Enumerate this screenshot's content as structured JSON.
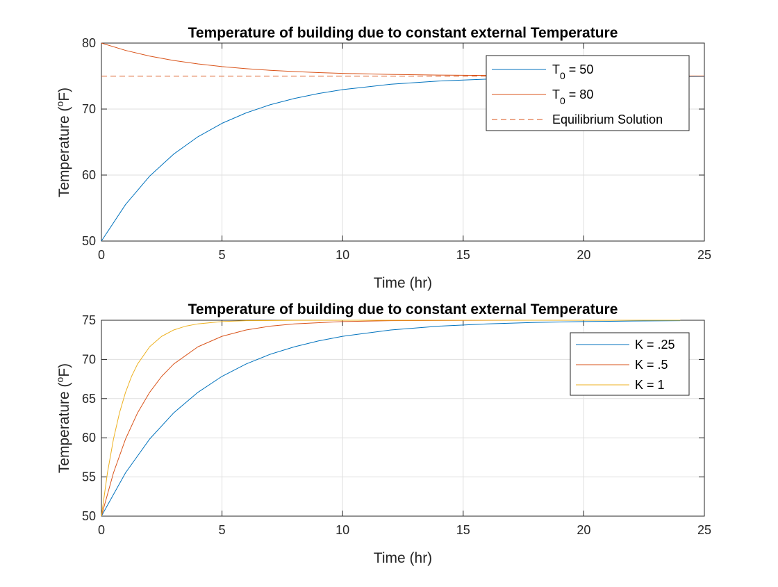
{
  "chart_data": [
    {
      "type": "line",
      "title": "Temperature of building due to constant external Temperature",
      "xlabel": "Time (hr)",
      "ylabel": "Temperature (",
      "ylabel_sup": "o",
      "ylabel_tail": "F)",
      "xlim": [
        0,
        25
      ],
      "ylim": [
        50,
        80
      ],
      "xticks": [
        0,
        5,
        10,
        15,
        20,
        25
      ],
      "yticks": [
        50,
        60,
        70,
        80
      ],
      "grid": true,
      "legend_position": "top-right",
      "series": [
        {
          "name": "T0 = 50",
          "label_main": "T",
          "label_sub": "0",
          "label_tail": " = 50",
          "color": "#0072BD",
          "style": "solid",
          "x": [
            0,
            1,
            2,
            3,
            4,
            5,
            6,
            7,
            8,
            9,
            10,
            12,
            14,
            16,
            18,
            20,
            22,
            24,
            25
          ],
          "y": [
            50,
            55.53,
            59.84,
            63.19,
            65.8,
            67.84,
            69.42,
            70.66,
            71.61,
            72.36,
            72.95,
            73.76,
            74.25,
            74.54,
            74.72,
            74.83,
            74.9,
            74.94,
            74.95
          ]
        },
        {
          "name": "T0 = 80",
          "label_main": "T",
          "label_sub": "0",
          "label_tail": " = 80",
          "color": "#D95319",
          "style": "solid",
          "x": [
            0,
            1,
            2,
            3,
            4,
            5,
            6,
            7,
            8,
            9,
            10,
            12,
            14,
            16,
            18,
            20,
            22,
            24,
            25
          ],
          "y": [
            80,
            78.89,
            78.03,
            77.36,
            76.84,
            76.43,
            76.12,
            75.87,
            75.68,
            75.53,
            75.41,
            75.25,
            75.15,
            75.09,
            75.06,
            75.03,
            75.02,
            75.01,
            75.01
          ]
        },
        {
          "name": "Equilibrium Solution",
          "label_main": "Equilibrium Solution",
          "label_sub": "",
          "label_tail": "",
          "color": "#D95319",
          "style": "dashed",
          "x": [
            0,
            25
          ],
          "y": [
            75,
            75
          ]
        }
      ]
    },
    {
      "type": "line",
      "title": "Temperature of building due to constant external Temperature",
      "xlabel": "Time (hr)",
      "ylabel": "Temperature (",
      "ylabel_sup": "o",
      "ylabel_tail": "F)",
      "xlim": [
        0,
        25
      ],
      "ylim": [
        50,
        75
      ],
      "xticks": [
        0,
        5,
        10,
        15,
        20,
        25
      ],
      "yticks": [
        50,
        55,
        60,
        65,
        70,
        75
      ],
      "grid": true,
      "legend_position": "top-right",
      "series": [
        {
          "name": "K = .25",
          "label_main": "K = .25",
          "label_sub": "",
          "label_tail": "",
          "color": "#0072BD",
          "style": "solid",
          "x": [
            0,
            1,
            2,
            3,
            4,
            5,
            6,
            7,
            8,
            9,
            10,
            12,
            14,
            16,
            18,
            20,
            22,
            24
          ],
          "y": [
            50,
            55.53,
            59.84,
            63.19,
            65.8,
            67.84,
            69.42,
            70.66,
            71.61,
            72.36,
            72.95,
            73.76,
            74.25,
            74.54,
            74.72,
            74.83,
            74.9,
            74.94
          ]
        },
        {
          "name": "K = .5",
          "label_main": "K = .5",
          "label_sub": "",
          "label_tail": "",
          "color": "#D95319",
          "style": "solid",
          "x": [
            0,
            0.5,
            1,
            1.5,
            2,
            2.5,
            3,
            4,
            5,
            6,
            7,
            8,
            10,
            12,
            16,
            20,
            24
          ],
          "y": [
            50,
            55.53,
            59.84,
            63.19,
            65.8,
            67.84,
            69.42,
            71.61,
            72.95,
            73.76,
            74.25,
            74.54,
            74.83,
            74.94,
            74.99,
            75.0,
            75.0
          ]
        },
        {
          "name": "K = 1",
          "label_main": "K = 1",
          "label_sub": "",
          "label_tail": "",
          "color": "#EDB120",
          "style": "solid",
          "x": [
            0,
            0.25,
            0.5,
            0.75,
            1,
            1.25,
            1.5,
            2,
            2.5,
            3,
            3.5,
            4,
            5,
            6,
            8,
            12,
            24
          ],
          "y": [
            50,
            55.53,
            59.84,
            63.19,
            65.8,
            67.84,
            69.42,
            71.62,
            72.95,
            73.76,
            74.25,
            74.54,
            74.83,
            74.94,
            74.99,
            75.0,
            75.0
          ]
        }
      ]
    }
  ]
}
